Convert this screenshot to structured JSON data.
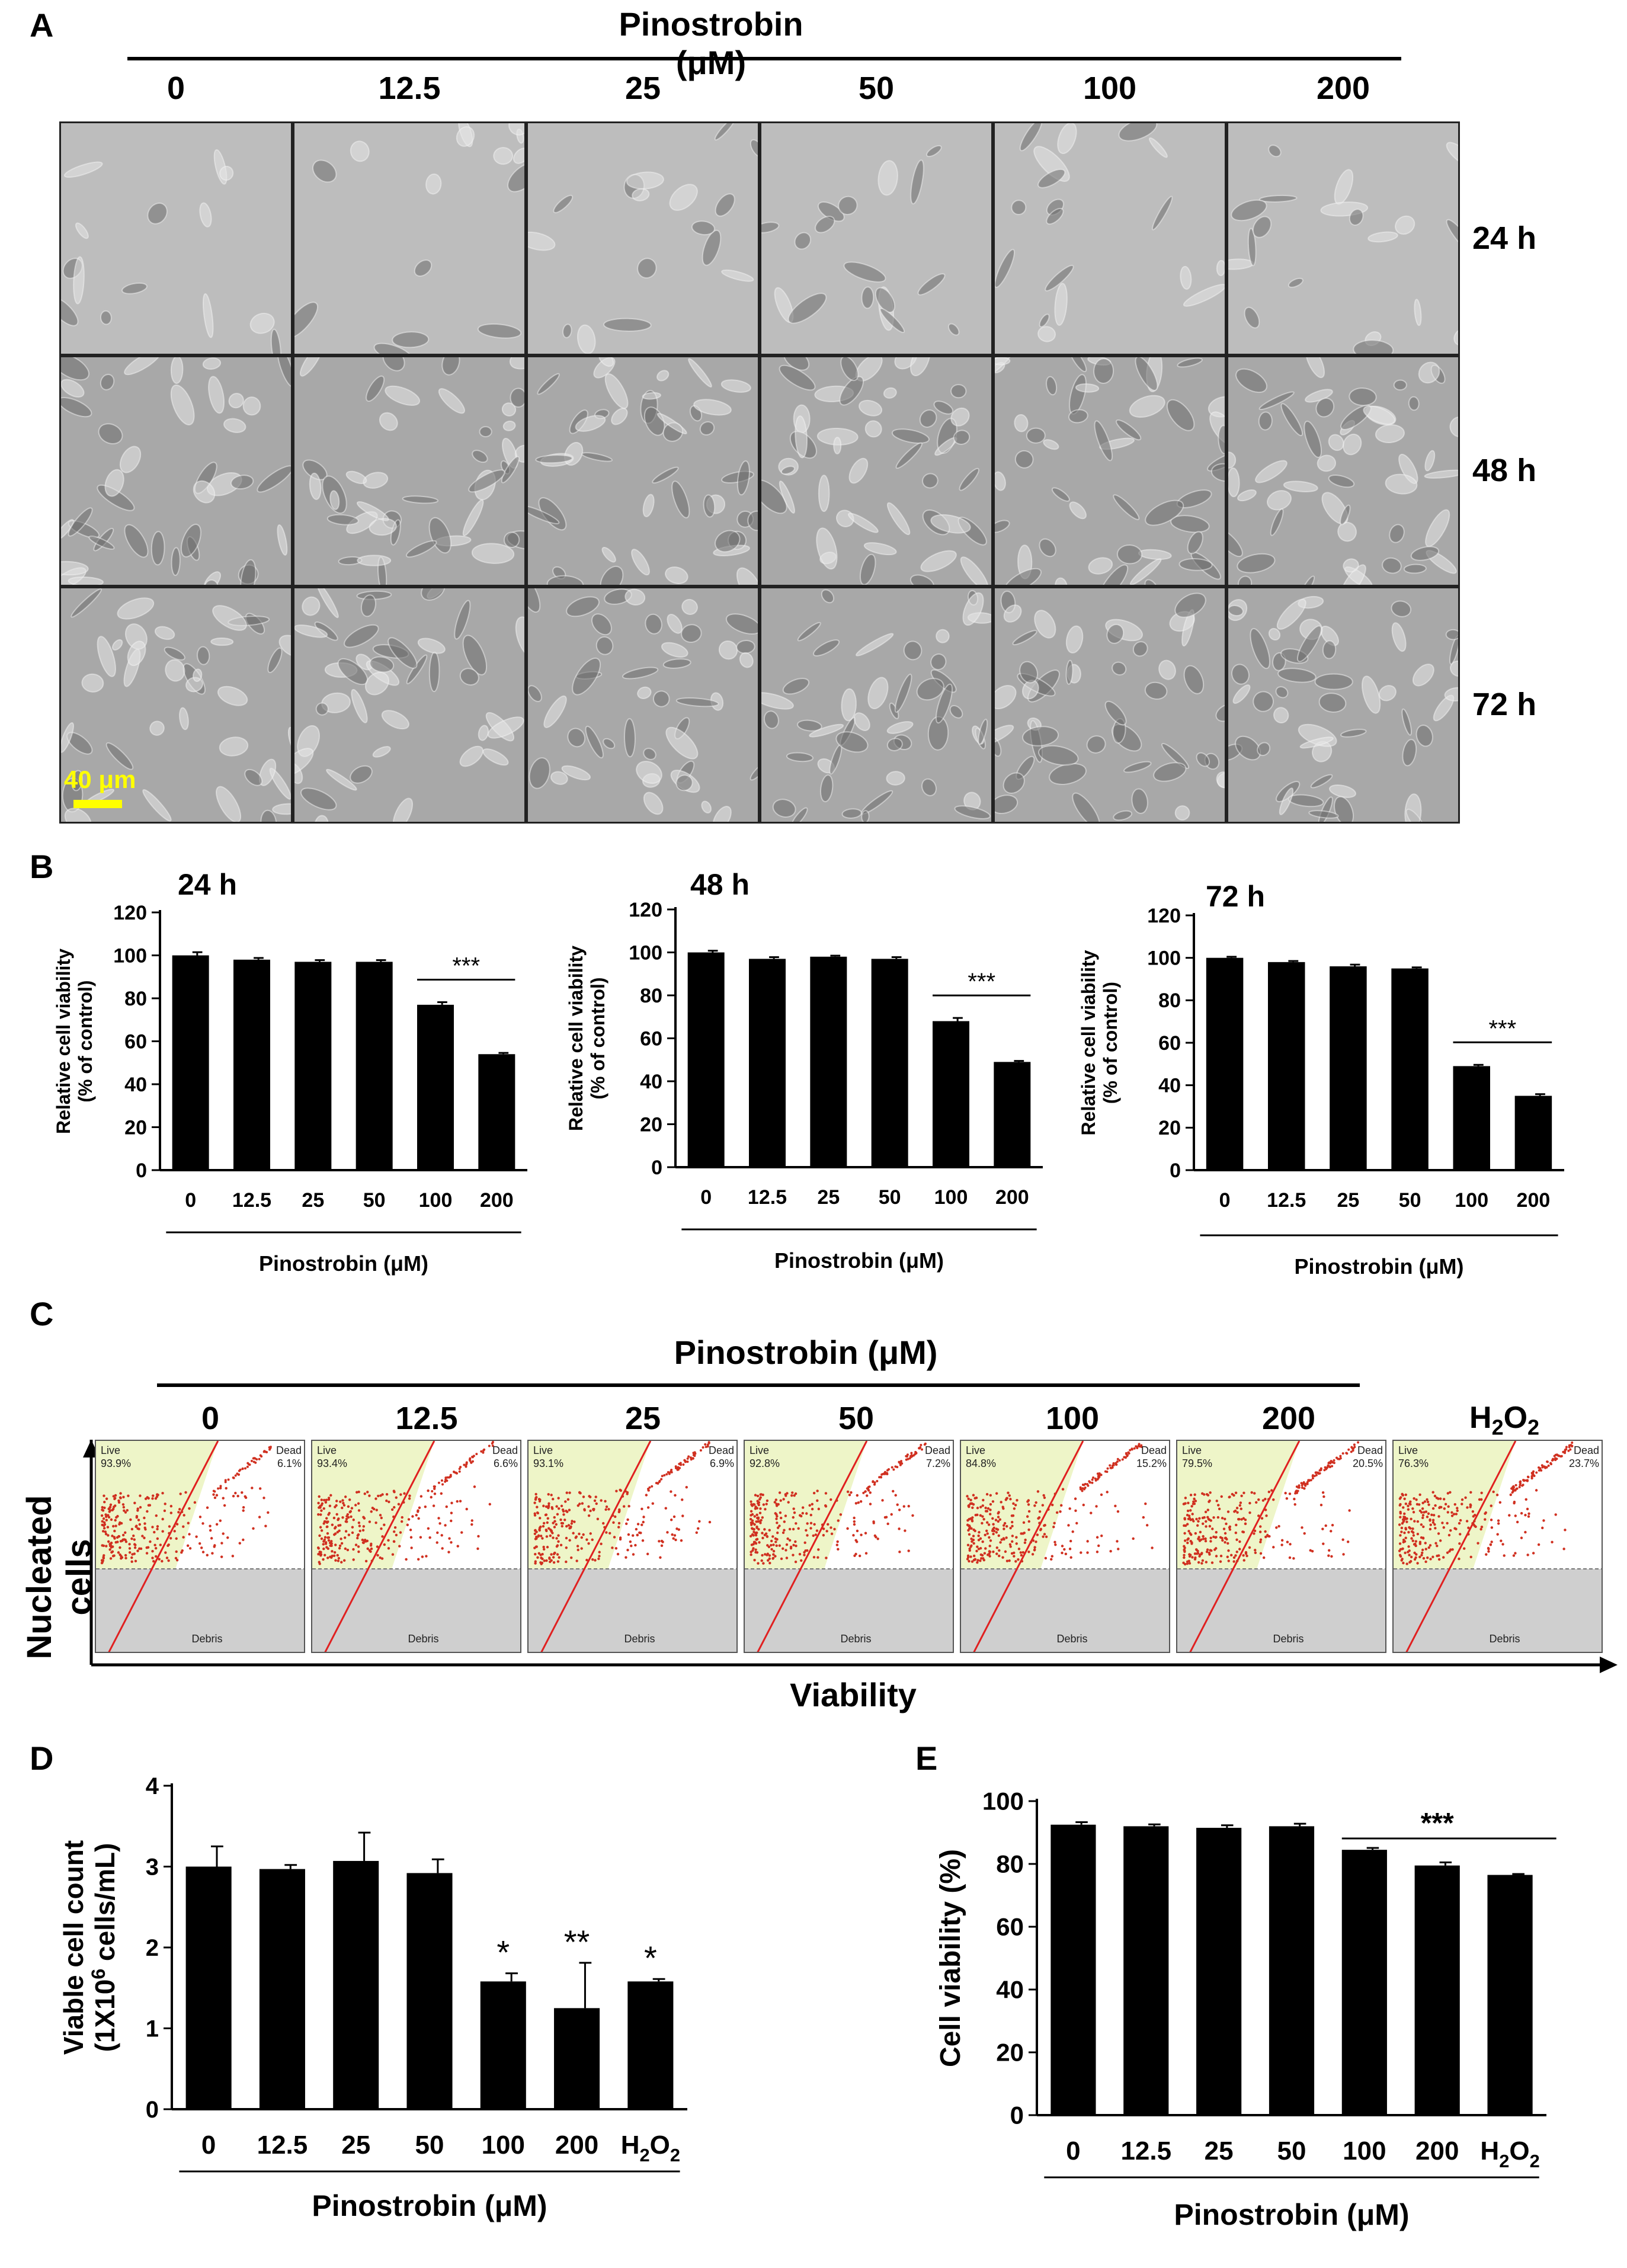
{
  "colors": {
    "bar": "#000000",
    "flow_live": "#eef5c8",
    "flow_debris": "#cfcfcf",
    "flow_line": "#e02020",
    "flow_dot": "#d03020",
    "scale_bar": "#ffff00"
  },
  "panelA": {
    "letter": "A",
    "title": "Pinostrobin (μM)",
    "concentrations": [
      "0",
      "12.5",
      "25",
      "50",
      "100",
      "200"
    ],
    "times": [
      "24 h",
      "48 h",
      "72 h"
    ],
    "scale_bar_label": "40 μm"
  },
  "panelB": {
    "letter": "B"
  },
  "panelC": {
    "letter": "C",
    "title": "Pinostrobin (μM)",
    "columns": [
      "0",
      "12.5",
      "25",
      "50",
      "100",
      "200"
    ],
    "h2o2_label": "H2O2",
    "y_axis_label": "Nucleated cells",
    "x_axis_label": "Viability",
    "live_label": "Live",
    "dead_label": "Dead",
    "debris_label": "Debris",
    "plots": [
      {
        "live": "93.9%",
        "dead": "6.1%"
      },
      {
        "live": "93.4%",
        "dead": "6.6%"
      },
      {
        "live": "93.1%",
        "dead": "6.9%"
      },
      {
        "live": "92.8%",
        "dead": "7.2%"
      },
      {
        "live": "84.8%",
        "dead": "15.2%"
      },
      {
        "live": "79.5%",
        "dead": "20.5%"
      },
      {
        "live": "76.3%",
        "dead": "23.7%"
      }
    ]
  },
  "panelD": {
    "letter": "D"
  },
  "panelE": {
    "letter": "E"
  },
  "chart_data": [
    {
      "id": "B24",
      "type": "bar",
      "title": "24 h",
      "categories": [
        "0",
        "12.5",
        "25",
        "50",
        "100",
        "200"
      ],
      "values": [
        100,
        98,
        97,
        97,
        77,
        54
      ],
      "errors": [
        1.5,
        0.8,
        0.8,
        0.8,
        1.2,
        0.6
      ],
      "ylabel": "Relative cell viability\n(% of control)",
      "xlabel": "Pinostrobin (μM)",
      "ylim": [
        0,
        120
      ],
      "yticks": [
        0,
        20,
        40,
        60,
        80,
        100,
        120
      ],
      "annotation": "***",
      "annotation_span": [
        4,
        5
      ]
    },
    {
      "id": "B48",
      "type": "bar",
      "title": "48 h",
      "categories": [
        "0",
        "12.5",
        "25",
        "50",
        "100",
        "200"
      ],
      "values": [
        100,
        97,
        98,
        97,
        68,
        49
      ],
      "errors": [
        0.8,
        0.8,
        0.5,
        0.8,
        1.5,
        0.5
      ],
      "ylabel": "Relative cell viability\n(% of control)",
      "xlabel": "Pinostrobin (μM)",
      "ylim": [
        0,
        120
      ],
      "yticks": [
        0,
        20,
        40,
        60,
        80,
        100,
        120
      ],
      "annotation": "***",
      "annotation_span": [
        4,
        5
      ]
    },
    {
      "id": "B72",
      "type": "bar",
      "title": "72 h",
      "categories": [
        "0",
        "12.5",
        "25",
        "50",
        "100",
        "200"
      ],
      "values": [
        100,
        98,
        96,
        95,
        49,
        35
      ],
      "errors": [
        0.5,
        0.5,
        0.8,
        0.5,
        0.6,
        0.8
      ],
      "ylabel": "Relative cell viability\n(% of control)",
      "xlabel": "Pinostrobin (μM)",
      "ylim": [
        0,
        120
      ],
      "yticks": [
        0,
        20,
        40,
        60,
        80,
        100,
        120
      ],
      "annotation": "***",
      "annotation_span": [
        4,
        5
      ]
    },
    {
      "id": "D",
      "type": "bar",
      "title": "",
      "categories": [
        "0",
        "12.5",
        "25",
        "50",
        "100",
        "200",
        "H2O2"
      ],
      "values": [
        3.0,
        2.97,
        3.07,
        2.92,
        1.58,
        1.25,
        1.58
      ],
      "errors": [
        0.25,
        0.05,
        0.35,
        0.17,
        0.1,
        0.56,
        0.03
      ],
      "ylabel": "Viable cell count\n(1X10^6 cells/mL)",
      "xlabel": "Pinostrobin (μM)",
      "ylim": [
        0,
        4
      ],
      "yticks": [
        0,
        1,
        2,
        3,
        4
      ],
      "stars": [
        "",
        "",
        "",
        "",
        "*",
        "**",
        "*"
      ]
    },
    {
      "id": "E",
      "type": "bar",
      "title": "",
      "categories": [
        "0",
        "12.5",
        "25",
        "50",
        "100",
        "200",
        "H2O2"
      ],
      "values": [
        92.5,
        92,
        91.5,
        92,
        84.5,
        79.5,
        76.5
      ],
      "errors": [
        0.8,
        0.6,
        0.8,
        0.8,
        0.6,
        1.0,
        0.3
      ],
      "ylabel": "Cell viability (%)",
      "xlabel": "Pinostrobin (μM)",
      "ylim": [
        0,
        100
      ],
      "yticks": [
        0,
        20,
        40,
        60,
        80,
        100
      ],
      "annotation": "***",
      "annotation_span": [
        4,
        6
      ]
    }
  ]
}
